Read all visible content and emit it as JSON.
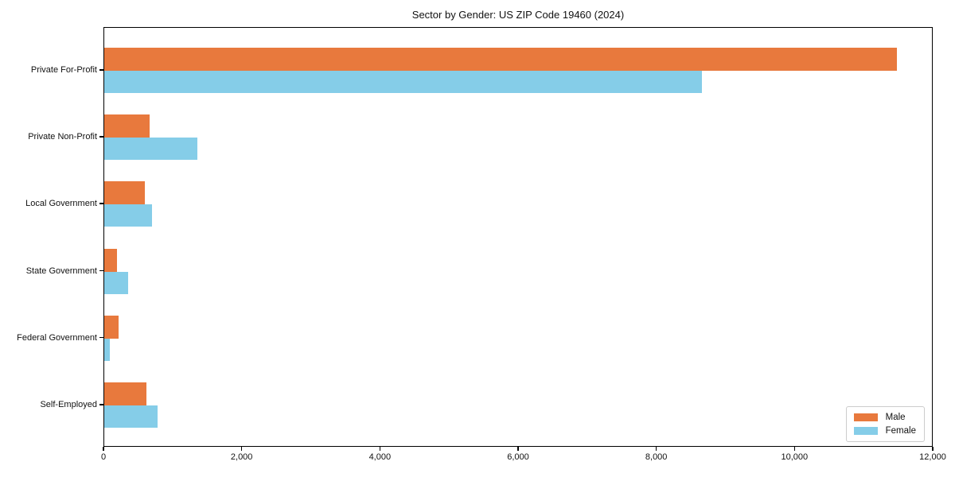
{
  "chart_data": {
    "type": "bar",
    "orientation": "horizontal",
    "title": "Sector by Gender: US ZIP Code 19460 (2024)",
    "categories": [
      "Private For-Profit",
      "Private Non-Profit",
      "Local Government",
      "State Government",
      "Federal Government",
      "Self-Employed"
    ],
    "series": [
      {
        "name": "Male",
        "color": "#e8793d",
        "values": [
          11470,
          660,
          590,
          185,
          210,
          610
        ]
      },
      {
        "name": "Female",
        "color": "#85cde8",
        "values": [
          8650,
          1350,
          690,
          350,
          80,
          770
        ]
      }
    ],
    "xlim": [
      0,
      12000
    ],
    "x_ticks": [
      0,
      2000,
      4000,
      6000,
      8000,
      10000,
      12000
    ],
    "x_tick_labels": [
      "0",
      "2,000",
      "4,000",
      "6,000",
      "8,000",
      "10,000",
      "12,000"
    ],
    "xlabel": "",
    "ylabel": "",
    "grid": false,
    "legend_position": "lower right"
  }
}
